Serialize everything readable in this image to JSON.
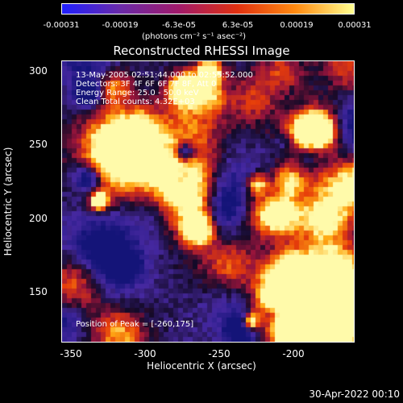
{
  "colorbar": {
    "ticks": [
      "-0.00031",
      "-0.00019",
      "-6.3e-05",
      "6.3e-05",
      "0.00019",
      "0.00031"
    ],
    "units": "(photons cm⁻² s⁻¹ asec⁻²)",
    "colors": [
      "#2020ff",
      "#6a2aa8",
      "#a01a6a",
      "#e03010",
      "#ff8a10",
      "#ffff90"
    ]
  },
  "title": "Reconstructed RHESSI Image",
  "info": {
    "line1": "13-May-2005 02:51:44.000 to 02:55:52.000",
    "line2": "Detectors: 3F 4F 6F 6F 7F 8F, Att 0",
    "line3": "Energy Range: 25.0 - 50.0 keV",
    "line4": "Clean    Total counts: 4.32E+03"
  },
  "peak": "Position of Peak = [-260,175]",
  "axes": {
    "xlabel": "Heliocentric X (arcsec)",
    "ylabel": "Heliocentric Y (arcsec)",
    "xticks": [
      "-350",
      "-300",
      "-250",
      "-200"
    ],
    "yticks": [
      "300",
      "250",
      "200",
      "150"
    ]
  },
  "date": "30-Apr-2022 00:10"
}
